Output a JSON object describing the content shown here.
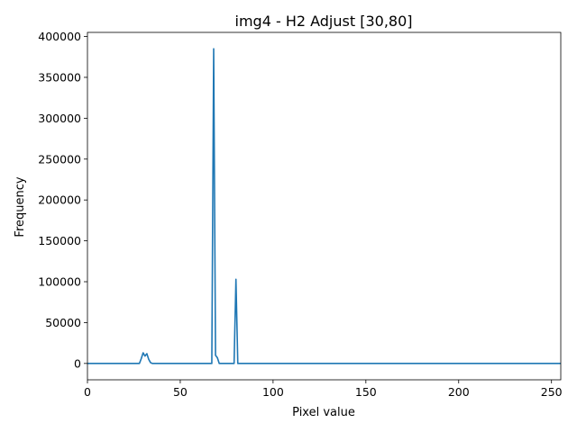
{
  "chart_data": {
    "type": "line",
    "title": "img4 - H2 Adjust [30,80]",
    "xlabel": "Pixel value",
    "ylabel": "Frequency",
    "xlim": [
      0,
      255
    ],
    "ylim": [
      -20000,
      405000
    ],
    "xticks": [
      0,
      50,
      100,
      150,
      200,
      250
    ],
    "yticks": [
      0,
      50000,
      100000,
      150000,
      200000,
      250000,
      300000,
      350000,
      400000
    ],
    "grid": false,
    "color": "#1f77b4",
    "series": [
      {
        "x": [
          0,
          28,
          29,
          30,
          31,
          32,
          33,
          34,
          35,
          67,
          68,
          69,
          70,
          71,
          72,
          79,
          80,
          81,
          82,
          255
        ],
        "y": [
          0,
          0,
          6000,
          13000,
          9000,
          12000,
          5000,
          1000,
          0,
          0,
          385000,
          10000,
          7000,
          0,
          0,
          0,
          103000,
          0,
          0,
          0
        ]
      }
    ]
  }
}
